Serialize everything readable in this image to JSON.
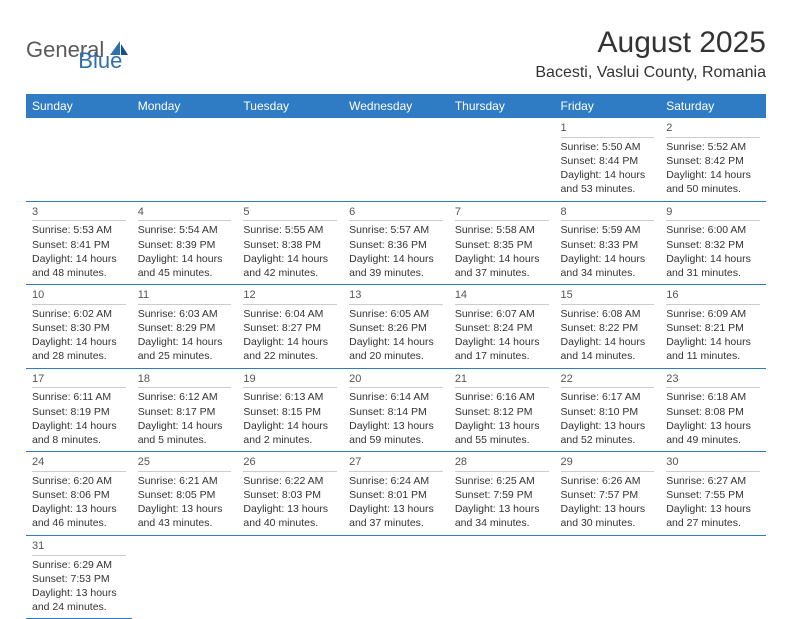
{
  "logo": {
    "part1": "General",
    "part2": "Blue"
  },
  "title": "August 2025",
  "location": "Bacesti, Vaslui County, Romania",
  "colors": {
    "header_bg": "#2f7bc4",
    "header_fg": "#ffffff",
    "border": "#2f7bc4",
    "logo_gray": "#5a5a5a",
    "logo_blue": "#2f6fb0"
  },
  "day_headers": [
    "Sunday",
    "Monday",
    "Tuesday",
    "Wednesday",
    "Thursday",
    "Friday",
    "Saturday"
  ],
  "weeks": [
    [
      null,
      null,
      null,
      null,
      null,
      {
        "n": "1",
        "sr": "Sunrise: 5:50 AM",
        "ss": "Sunset: 8:44 PM",
        "dl1": "Daylight: 14 hours",
        "dl2": "and 53 minutes."
      },
      {
        "n": "2",
        "sr": "Sunrise: 5:52 AM",
        "ss": "Sunset: 8:42 PM",
        "dl1": "Daylight: 14 hours",
        "dl2": "and 50 minutes."
      }
    ],
    [
      {
        "n": "3",
        "sr": "Sunrise: 5:53 AM",
        "ss": "Sunset: 8:41 PM",
        "dl1": "Daylight: 14 hours",
        "dl2": "and 48 minutes."
      },
      {
        "n": "4",
        "sr": "Sunrise: 5:54 AM",
        "ss": "Sunset: 8:39 PM",
        "dl1": "Daylight: 14 hours",
        "dl2": "and 45 minutes."
      },
      {
        "n": "5",
        "sr": "Sunrise: 5:55 AM",
        "ss": "Sunset: 8:38 PM",
        "dl1": "Daylight: 14 hours",
        "dl2": "and 42 minutes."
      },
      {
        "n": "6",
        "sr": "Sunrise: 5:57 AM",
        "ss": "Sunset: 8:36 PM",
        "dl1": "Daylight: 14 hours",
        "dl2": "and 39 minutes."
      },
      {
        "n": "7",
        "sr": "Sunrise: 5:58 AM",
        "ss": "Sunset: 8:35 PM",
        "dl1": "Daylight: 14 hours",
        "dl2": "and 37 minutes."
      },
      {
        "n": "8",
        "sr": "Sunrise: 5:59 AM",
        "ss": "Sunset: 8:33 PM",
        "dl1": "Daylight: 14 hours",
        "dl2": "and 34 minutes."
      },
      {
        "n": "9",
        "sr": "Sunrise: 6:00 AM",
        "ss": "Sunset: 8:32 PM",
        "dl1": "Daylight: 14 hours",
        "dl2": "and 31 minutes."
      }
    ],
    [
      {
        "n": "10",
        "sr": "Sunrise: 6:02 AM",
        "ss": "Sunset: 8:30 PM",
        "dl1": "Daylight: 14 hours",
        "dl2": "and 28 minutes."
      },
      {
        "n": "11",
        "sr": "Sunrise: 6:03 AM",
        "ss": "Sunset: 8:29 PM",
        "dl1": "Daylight: 14 hours",
        "dl2": "and 25 minutes."
      },
      {
        "n": "12",
        "sr": "Sunrise: 6:04 AM",
        "ss": "Sunset: 8:27 PM",
        "dl1": "Daylight: 14 hours",
        "dl2": "and 22 minutes."
      },
      {
        "n": "13",
        "sr": "Sunrise: 6:05 AM",
        "ss": "Sunset: 8:26 PM",
        "dl1": "Daylight: 14 hours",
        "dl2": "and 20 minutes."
      },
      {
        "n": "14",
        "sr": "Sunrise: 6:07 AM",
        "ss": "Sunset: 8:24 PM",
        "dl1": "Daylight: 14 hours",
        "dl2": "and 17 minutes."
      },
      {
        "n": "15",
        "sr": "Sunrise: 6:08 AM",
        "ss": "Sunset: 8:22 PM",
        "dl1": "Daylight: 14 hours",
        "dl2": "and 14 minutes."
      },
      {
        "n": "16",
        "sr": "Sunrise: 6:09 AM",
        "ss": "Sunset: 8:21 PM",
        "dl1": "Daylight: 14 hours",
        "dl2": "and 11 minutes."
      }
    ],
    [
      {
        "n": "17",
        "sr": "Sunrise: 6:11 AM",
        "ss": "Sunset: 8:19 PM",
        "dl1": "Daylight: 14 hours",
        "dl2": "and 8 minutes."
      },
      {
        "n": "18",
        "sr": "Sunrise: 6:12 AM",
        "ss": "Sunset: 8:17 PM",
        "dl1": "Daylight: 14 hours",
        "dl2": "and 5 minutes."
      },
      {
        "n": "19",
        "sr": "Sunrise: 6:13 AM",
        "ss": "Sunset: 8:15 PM",
        "dl1": "Daylight: 14 hours",
        "dl2": "and 2 minutes."
      },
      {
        "n": "20",
        "sr": "Sunrise: 6:14 AM",
        "ss": "Sunset: 8:14 PM",
        "dl1": "Daylight: 13 hours",
        "dl2": "and 59 minutes."
      },
      {
        "n": "21",
        "sr": "Sunrise: 6:16 AM",
        "ss": "Sunset: 8:12 PM",
        "dl1": "Daylight: 13 hours",
        "dl2": "and 55 minutes."
      },
      {
        "n": "22",
        "sr": "Sunrise: 6:17 AM",
        "ss": "Sunset: 8:10 PM",
        "dl1": "Daylight: 13 hours",
        "dl2": "and 52 minutes."
      },
      {
        "n": "23",
        "sr": "Sunrise: 6:18 AM",
        "ss": "Sunset: 8:08 PM",
        "dl1": "Daylight: 13 hours",
        "dl2": "and 49 minutes."
      }
    ],
    [
      {
        "n": "24",
        "sr": "Sunrise: 6:20 AM",
        "ss": "Sunset: 8:06 PM",
        "dl1": "Daylight: 13 hours",
        "dl2": "and 46 minutes."
      },
      {
        "n": "25",
        "sr": "Sunrise: 6:21 AM",
        "ss": "Sunset: 8:05 PM",
        "dl1": "Daylight: 13 hours",
        "dl2": "and 43 minutes."
      },
      {
        "n": "26",
        "sr": "Sunrise: 6:22 AM",
        "ss": "Sunset: 8:03 PM",
        "dl1": "Daylight: 13 hours",
        "dl2": "and 40 minutes."
      },
      {
        "n": "27",
        "sr": "Sunrise: 6:24 AM",
        "ss": "Sunset: 8:01 PM",
        "dl1": "Daylight: 13 hours",
        "dl2": "and 37 minutes."
      },
      {
        "n": "28",
        "sr": "Sunrise: 6:25 AM",
        "ss": "Sunset: 7:59 PM",
        "dl1": "Daylight: 13 hours",
        "dl2": "and 34 minutes."
      },
      {
        "n": "29",
        "sr": "Sunrise: 6:26 AM",
        "ss": "Sunset: 7:57 PM",
        "dl1": "Daylight: 13 hours",
        "dl2": "and 30 minutes."
      },
      {
        "n": "30",
        "sr": "Sunrise: 6:27 AM",
        "ss": "Sunset: 7:55 PM",
        "dl1": "Daylight: 13 hours",
        "dl2": "and 27 minutes."
      }
    ],
    [
      {
        "n": "31",
        "sr": "Sunrise: 6:29 AM",
        "ss": "Sunset: 7:53 PM",
        "dl1": "Daylight: 13 hours",
        "dl2": "and 24 minutes."
      },
      null,
      null,
      null,
      null,
      null,
      null
    ]
  ]
}
